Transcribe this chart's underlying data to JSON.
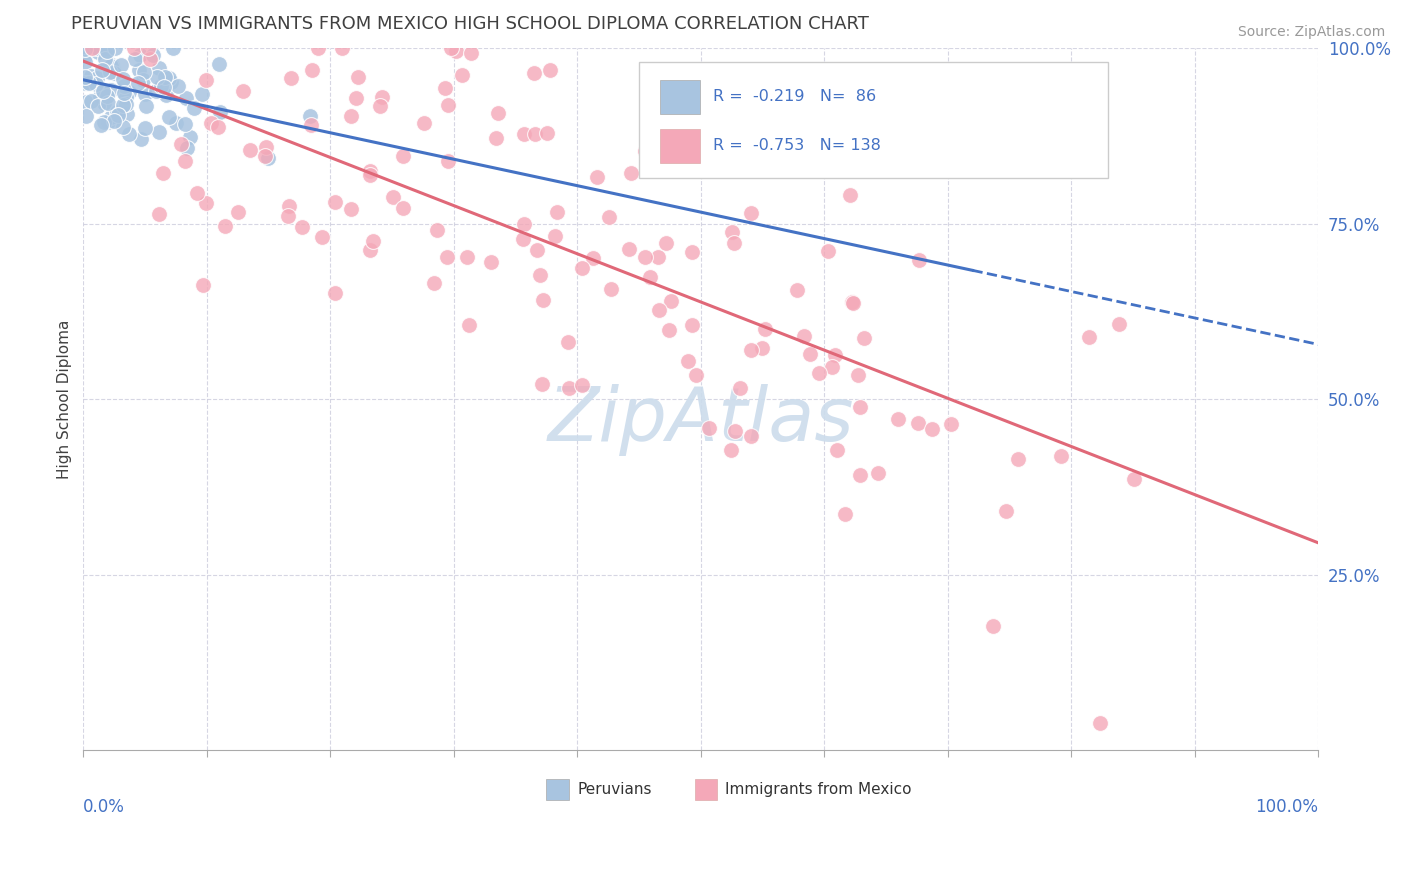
{
  "title": "PERUVIAN VS IMMIGRANTS FROM MEXICO HIGH SCHOOL DIPLOMA CORRELATION CHART",
  "source": "Source: ZipAtlas.com",
  "ylabel": "High School Diploma",
  "legend_label1": "Peruvians",
  "legend_label2": "Immigrants from Mexico",
  "r1": -0.219,
  "n1": 86,
  "r2": -0.753,
  "n2": 138,
  "color1": "#a8c4e0",
  "color2": "#f4a8b8",
  "line1_color": "#4472c4",
  "line2_color": "#e06878",
  "background": "#ffffff",
  "grid_color": "#ccccdd",
  "title_color": "#404040",
  "axis_label_color": "#4472c4",
  "watermark_color": "#ccdcec",
  "source_color": "#999999"
}
